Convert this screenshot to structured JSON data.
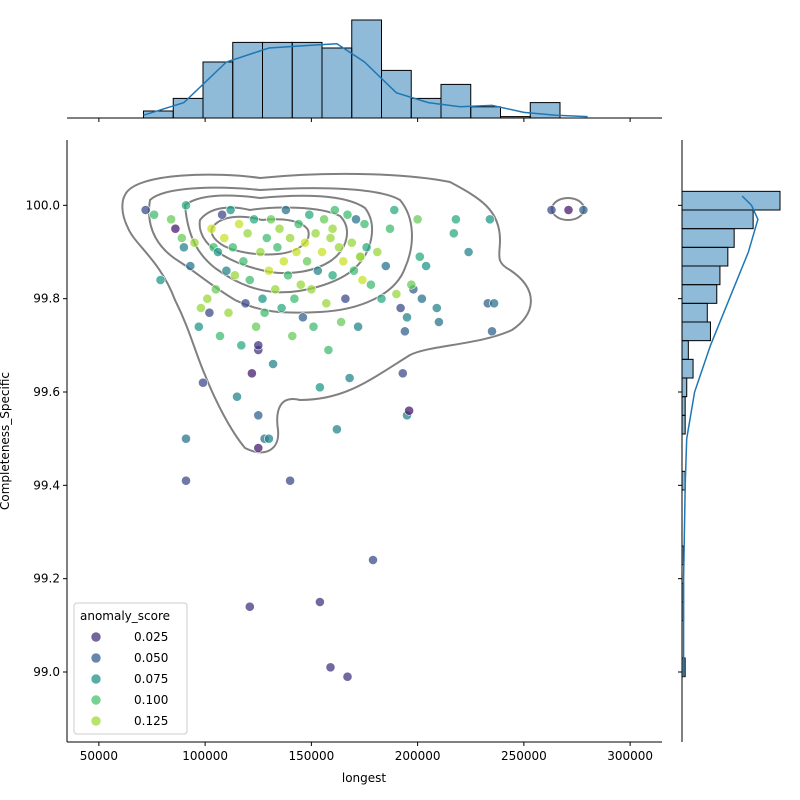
{
  "chart_data": {
    "type": "scatter",
    "xlabel": "longest",
    "ylabel": "Completeness_Specific",
    "xlim": [
      35000,
      315000
    ],
    "ylim": [
      98.85,
      100.14
    ],
    "x_ticks": [
      50000,
      100000,
      150000,
      200000,
      250000,
      300000
    ],
    "x_tick_labels": [
      "50000",
      "100000",
      "150000",
      "200000",
      "250000",
      "300000"
    ],
    "y_ticks": [
      99.0,
      99.2,
      99.4,
      99.6,
      99.8,
      100.0
    ],
    "y_tick_labels": [
      "99.0",
      "99.2",
      "99.4",
      "99.6",
      "99.8",
      "100.0"
    ],
    "grid": false,
    "legend": {
      "title": "anomaly_score",
      "placement": "lower-left",
      "entries": [
        {
          "label": "0.025",
          "color": "#46327e"
        },
        {
          "label": "0.050",
          "color": "#365c8d"
        },
        {
          "label": "0.075",
          "color": "#21918c"
        },
        {
          "label": "0.100",
          "color": "#4ac16d"
        },
        {
          "label": "0.125",
          "color": "#a0da39"
        }
      ]
    },
    "colormap": "viridis",
    "color_range": [
      0.01,
      0.14
    ],
    "points": [
      [
        72000,
        99.99,
        0.04
      ],
      [
        76000,
        99.98,
        0.1
      ],
      [
        79000,
        99.84,
        0.08
      ],
      [
        84000,
        99.97,
        0.11
      ],
      [
        86000,
        99.95,
        0.02
      ],
      [
        89000,
        99.93,
        0.11
      ],
      [
        90000,
        99.91,
        0.07
      ],
      [
        91000,
        100.0,
        0.09
      ],
      [
        93000,
        99.87,
        0.06
      ],
      [
        95000,
        99.92,
        0.12
      ],
      [
        97000,
        99.74,
        0.08
      ],
      [
        98000,
        99.78,
        0.12
      ],
      [
        99000,
        99.62,
        0.04
      ],
      [
        101000,
        99.8,
        0.12
      ],
      [
        102000,
        99.77,
        0.04
      ],
      [
        103000,
        99.95,
        0.13
      ],
      [
        104000,
        99.91,
        0.1
      ],
      [
        105000,
        99.82,
        0.11
      ],
      [
        106000,
        99.9,
        0.08
      ],
      [
        107000,
        99.72,
        0.1
      ],
      [
        108000,
        99.98,
        0.04
      ],
      [
        109000,
        99.93,
        0.13
      ],
      [
        110000,
        99.86,
        0.07
      ],
      [
        111000,
        99.77,
        0.12
      ],
      [
        112000,
        99.99,
        0.08
      ],
      [
        113000,
        99.91,
        0.1
      ],
      [
        114000,
        99.85,
        0.12
      ],
      [
        115000,
        99.59,
        0.07
      ],
      [
        116000,
        99.96,
        0.13
      ],
      [
        117000,
        99.7,
        0.09
      ],
      [
        118000,
        99.88,
        0.1
      ],
      [
        119000,
        99.79,
        0.04
      ],
      [
        120000,
        99.94,
        0.12
      ],
      [
        121000,
        99.84,
        0.1
      ],
      [
        122000,
        99.64,
        0.02
      ],
      [
        123000,
        99.97,
        0.09
      ],
      [
        124000,
        99.74,
        0.11
      ],
      [
        125000,
        99.69,
        0.03
      ],
      [
        126000,
        99.9,
        0.12
      ],
      [
        127000,
        99.8,
        0.08
      ],
      [
        128000,
        99.5,
        0.06
      ],
      [
        129000,
        99.93,
        0.1
      ],
      [
        130000,
        99.86,
        0.13
      ],
      [
        131000,
        99.97,
        0.11
      ],
      [
        132000,
        99.66,
        0.07
      ],
      [
        133000,
        99.82,
        0.12
      ],
      [
        134000,
        99.91,
        0.1
      ],
      [
        135000,
        99.95,
        0.12
      ],
      [
        136000,
        99.78,
        0.09
      ],
      [
        137000,
        99.88,
        0.13
      ],
      [
        138000,
        99.99,
        0.06
      ],
      [
        139000,
        99.85,
        0.1
      ],
      [
        140000,
        99.93,
        0.12
      ],
      [
        141000,
        99.72,
        0.11
      ],
      [
        142000,
        99.8,
        0.1
      ],
      [
        143000,
        99.9,
        0.13
      ],
      [
        144000,
        99.96,
        0.1
      ],
      [
        145000,
        99.83,
        0.12
      ],
      [
        146000,
        99.76,
        0.05
      ],
      [
        147000,
        99.92,
        0.13
      ],
      [
        148000,
        99.88,
        0.11
      ],
      [
        149000,
        99.98,
        0.09
      ],
      [
        150000,
        99.82,
        0.12
      ],
      [
        151000,
        99.74,
        0.1
      ],
      [
        152000,
        99.94,
        0.12
      ],
      [
        153000,
        99.86,
        0.07
      ],
      [
        154000,
        99.61,
        0.08
      ],
      [
        155000,
        99.9,
        0.13
      ],
      [
        156000,
        99.97,
        0.11
      ],
      [
        157000,
        99.79,
        0.12
      ],
      [
        158000,
        99.69,
        0.1
      ],
      [
        159000,
        99.93,
        0.12
      ],
      [
        160000,
        99.85,
        0.09
      ],
      [
        161000,
        99.99,
        0.1
      ],
      [
        162000,
        99.52,
        0.07
      ],
      [
        163000,
        99.91,
        0.12
      ],
      [
        164000,
        99.75,
        0.11
      ],
      [
        165000,
        99.88,
        0.13
      ],
      [
        166000,
        99.8,
        0.04
      ],
      [
        167000,
        99.98,
        0.1
      ],
      [
        168000,
        99.63,
        0.07
      ],
      [
        169000,
        99.92,
        0.12
      ],
      [
        170000,
        99.86,
        0.1
      ],
      [
        171000,
        99.97,
        0.06
      ],
      [
        172000,
        99.74,
        0.07
      ],
      [
        173000,
        99.89,
        0.12
      ],
      [
        174000,
        99.84,
        0.13
      ],
      [
        175000,
        99.96,
        0.1
      ],
      [
        176000,
        99.91,
        0.09
      ],
      [
        178000,
        99.83,
        0.1
      ],
      [
        179000,
        99.24,
        0.04
      ],
      [
        181000,
        99.9,
        0.12
      ],
      [
        183000,
        99.8,
        0.09
      ],
      [
        185000,
        99.87,
        0.06
      ],
      [
        187000,
        99.95,
        0.1
      ],
      [
        189000,
        99.99,
        0.09
      ],
      [
        190000,
        99.81,
        0.12
      ],
      [
        192000,
        99.78,
        0.04
      ],
      [
        193000,
        99.64,
        0.04
      ],
      [
        194000,
        99.73,
        0.05
      ],
      [
        195000,
        99.55,
        0.07
      ],
      [
        196000,
        99.56,
        0.02
      ],
      [
        198000,
        99.82,
        0.05
      ],
      [
        200000,
        99.97,
        0.11
      ],
      [
        201000,
        99.89,
        0.09
      ],
      [
        202000,
        99.8,
        0.06
      ],
      [
        204000,
        99.87,
        0.08
      ],
      [
        209000,
        99.78,
        0.07
      ],
      [
        210000,
        99.75,
        0.06
      ],
      [
        217000,
        99.94,
        0.09
      ],
      [
        218000,
        99.97,
        0.09
      ],
      [
        224000,
        99.9,
        0.07
      ],
      [
        233000,
        99.79,
        0.05
      ],
      [
        234000,
        99.97,
        0.08
      ],
      [
        235000,
        99.73,
        0.05
      ],
      [
        236000,
        99.79,
        0.06
      ],
      [
        263000,
        99.99,
        0.04
      ],
      [
        271000,
        99.99,
        0.02
      ],
      [
        278000,
        99.99,
        0.05
      ],
      [
        121000,
        99.14,
        0.03
      ],
      [
        154000,
        99.15,
        0.03
      ],
      [
        159000,
        99.01,
        0.03
      ],
      [
        167000,
        98.99,
        0.03
      ],
      [
        140000,
        99.41,
        0.04
      ],
      [
        91000,
        99.41,
        0.04
      ],
      [
        91000,
        99.5,
        0.06
      ],
      [
        130000,
        99.5,
        0.07
      ],
      [
        125000,
        99.48,
        0.02
      ],
      [
        125000,
        99.55,
        0.05
      ],
      [
        125000,
        99.7,
        0.03
      ],
      [
        195000,
        99.76,
        0.07
      ],
      [
        197000,
        99.83,
        0.11
      ],
      [
        173000,
        99.89,
        0.12
      ],
      [
        160000,
        99.95,
        0.12
      ],
      [
        128000,
        99.77,
        0.1
      ]
    ],
    "x_hist": {
      "bin_edges": [
        71000,
        85000,
        99000,
        113000,
        127000,
        141000,
        155000,
        169000,
        183000,
        197000,
        211000,
        225000,
        239000,
        253000,
        267000,
        281000
      ],
      "counts": [
        5,
        14,
        40,
        54,
        54,
        54,
        50,
        70,
        34,
        14,
        24,
        8,
        1,
        11,
        0,
        2
      ]
    },
    "y_hist": {
      "bin_edges": [
        98.99,
        99.03,
        99.07,
        99.11,
        99.15,
        99.19,
        99.23,
        99.27,
        99.31,
        99.35,
        99.39,
        99.43,
        99.47,
        99.51,
        99.55,
        99.59,
        99.63,
        99.67,
        99.71,
        99.75,
        99.79,
        99.83,
        99.87,
        99.91,
        99.95,
        99.99,
        100.03
      ],
      "counts": [
        2,
        0,
        0,
        1,
        1,
        0,
        1,
        0,
        0,
        0,
        2,
        0,
        0,
        2,
        2,
        3,
        7,
        4,
        18,
        16,
        22,
        24,
        29,
        33,
        45,
        62
      ]
    },
    "kde_x": [
      [
        71000,
        2
      ],
      [
        90000,
        11
      ],
      [
        110000,
        40
      ],
      [
        130000,
        50
      ],
      [
        150000,
        52
      ],
      [
        162000,
        53
      ],
      [
        175000,
        40
      ],
      [
        190000,
        18
      ],
      [
        205000,
        11
      ],
      [
        220000,
        8
      ],
      [
        235000,
        9
      ],
      [
        250000,
        4
      ],
      [
        265000,
        2
      ],
      [
        280000,
        1
      ]
    ],
    "kde_y": [
      [
        98.99,
        1
      ],
      [
        99.2,
        1
      ],
      [
        99.4,
        2
      ],
      [
        99.5,
        3
      ],
      [
        99.6,
        8
      ],
      [
        99.7,
        18
      ],
      [
        99.8,
        30
      ],
      [
        99.9,
        42
      ],
      [
        99.97,
        48
      ],
      [
        100.0,
        44
      ],
      [
        100.02,
        38
      ]
    ]
  }
}
